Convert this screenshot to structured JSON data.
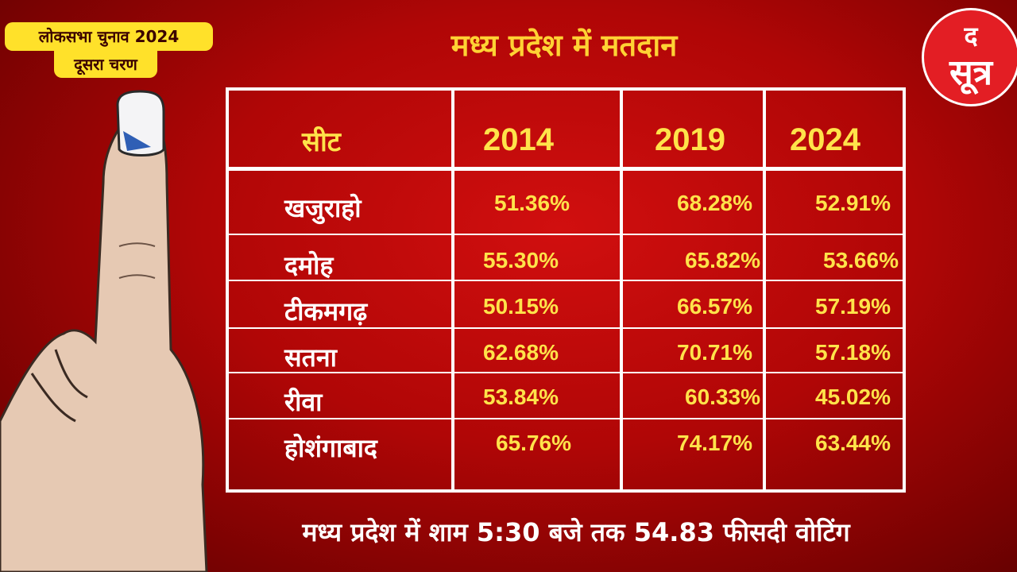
{
  "badge": {
    "line1": "लोकसभा चुनाव 2024",
    "line2": "दूसरा चरण"
  },
  "headline": "मध्य प्रदेश में मतदान",
  "logo": {
    "top": "द",
    "main": "सूत्र"
  },
  "footer": "मध्य प्रदेश में शाम 5:30 बजे तक 54.83 फीसदी वोटिंग",
  "colors": {
    "background": "#b00606",
    "accent": "#ffe34a",
    "logo": "#e31e24"
  },
  "chart_data": {
    "type": "table",
    "title": "मध्य प्रदेश में मतदान",
    "columns": [
      "सीट",
      "2014",
      "2019",
      "2024"
    ],
    "rows": [
      [
        "खजुराहो",
        "51.36%",
        "68.28%",
        "52.91%"
      ],
      [
        "दमोह",
        "55.30%",
        "65.82%",
        "53.66%"
      ],
      [
        "टीकमगढ़",
        "50.15%",
        "66.57%",
        "57.19%"
      ],
      [
        "सतना",
        "62.68%",
        "70.71%",
        "57.18%"
      ],
      [
        "रीवा",
        "53.84%",
        "60.33%",
        "45.02%"
      ],
      [
        "होशंगाबाद",
        "65.76%",
        "74.17%",
        "63.44%"
      ]
    ]
  }
}
